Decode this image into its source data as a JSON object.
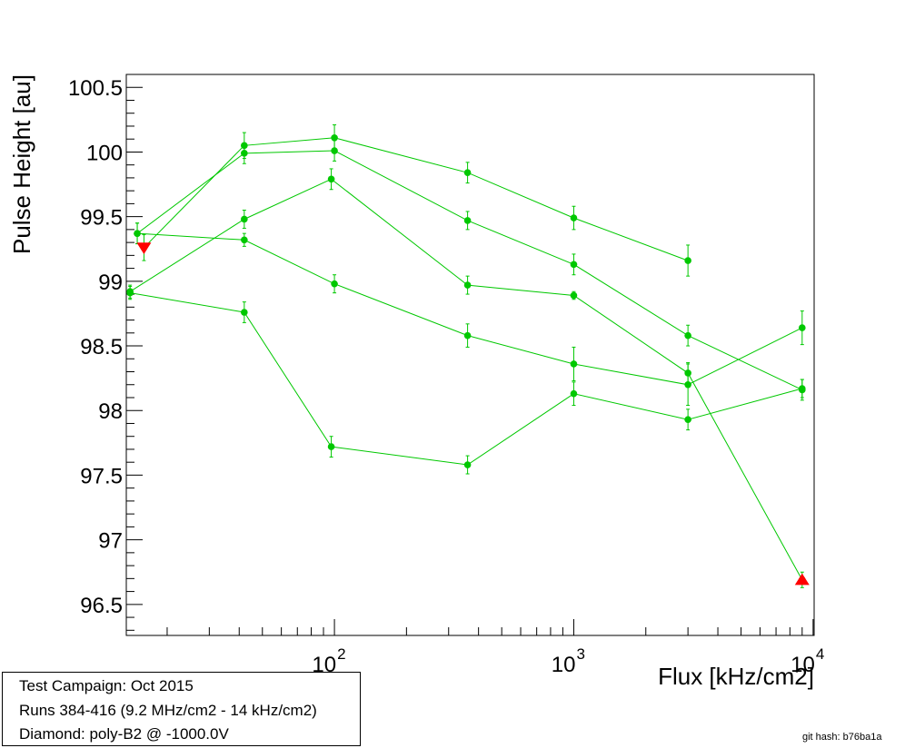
{
  "chart_data": {
    "type": "line",
    "title": "",
    "xlabel": "Flux [kHz/cm2]",
    "ylabel": "Pulse Height [au]",
    "xscale": "log",
    "xlim": [
      13.5,
      10100
    ],
    "ylim": [
      96.26,
      100.6
    ],
    "y_ticks": [
      "96.5",
      "97",
      "97.5",
      "98",
      "98.5",
      "99",
      "99.5",
      "100",
      "100.5"
    ],
    "y_tick_values": [
      96.5,
      97,
      97.5,
      98,
      98.5,
      99,
      99.5,
      100,
      100.5
    ],
    "x_ticks": [
      {
        "base": "10",
        "exp": "2",
        "value": 100
      },
      {
        "base": "10",
        "exp": "3",
        "value": 1000
      },
      {
        "base": "10",
        "exp": "4",
        "value": 10000
      }
    ],
    "grid": false,
    "series_color": "#00c800",
    "series": [
      {
        "x": [
          15,
          42,
          100,
          360,
          1000,
          3000,
          9000
        ],
        "y": [
          99.37,
          99.99,
          100.01,
          99.47,
          99.13,
          98.58,
          98.16
        ],
        "err": [
          0.08,
          0.08,
          0.08,
          0.07,
          0.08,
          0.08,
          0.08
        ]
      },
      {
        "x": [
          15,
          42,
          100,
          360,
          1000,
          3000,
          9000
        ],
        "y": [
          99.37,
          99.32,
          98.98,
          98.58,
          98.36,
          98.2,
          98.64
        ],
        "err": [
          0.08,
          0.05,
          0.07,
          0.09,
          0.13,
          0.16,
          0.13
        ]
      },
      {
        "x": [
          14,
          42,
          97,
          360,
          1000,
          3000,
          9000
        ],
        "y": [
          98.91,
          98.76,
          97.72,
          97.58,
          98.13,
          97.93,
          98.17
        ],
        "err": [
          0.05,
          0.08,
          0.08,
          0.07,
          0.09,
          0.08,
          0.07
        ]
      },
      {
        "x": [
          14,
          42,
          97,
          360,
          1000,
          3000,
          9000
        ],
        "y": [
          98.92,
          99.48,
          99.79,
          98.97,
          98.89,
          98.29,
          96.69
        ],
        "err": [
          0.05,
          0.07,
          0.08,
          0.07,
          0.03,
          0.08,
          0.06
        ]
      },
      {
        "x": [
          16,
          42,
          100,
          360,
          1000,
          3000
        ],
        "y": [
          99.26,
          100.05,
          100.11,
          99.84,
          99.49,
          99.16
        ],
        "err": [
          0.1,
          0.1,
          0.1,
          0.08,
          0.09,
          0.12
        ]
      }
    ],
    "markers": [
      {
        "shape": "triangle-down",
        "color": "#ff0000",
        "x": 16,
        "y": 99.26
      },
      {
        "shape": "triangle-up",
        "color": "#ff0000",
        "x": 9000,
        "y": 96.69
      }
    ]
  },
  "info": {
    "line1": "Test Campaign: Oct 2015",
    "line2": "Runs 384-416 (9.2 MHz/cm2 - 14 kHz/cm2)",
    "line3": "Diamond: poly-B2 @ -1000.0V"
  },
  "git_hash": "git hash: b76ba1a"
}
